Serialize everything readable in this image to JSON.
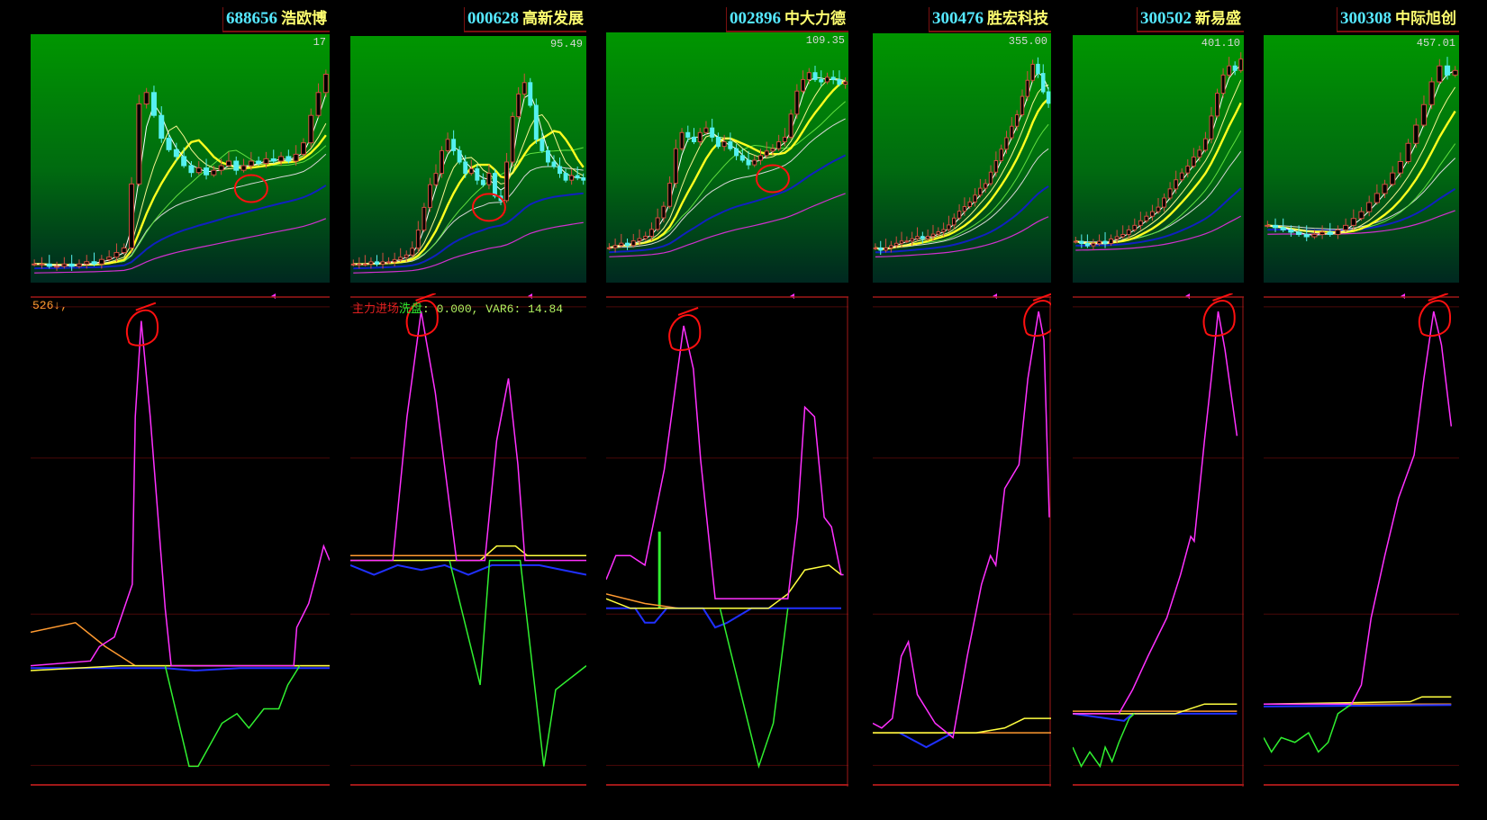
{
  "colors": {
    "up": "#d05040",
    "down": "#55f0f0",
    "ma5": "#ffffff",
    "ma10": "#f5f590",
    "ma20": "#ffff20",
    "ma30": "#60e040",
    "ma60": "#d8d8d8",
    "ma120": "#1020c0",
    "ma250": "#d030d0",
    "magenta": "#ff30ff",
    "yellow": "#ffff40",
    "orange": "#ff9a30",
    "blue": "#2030ff",
    "green": "#30f030",
    "annotation": "#ff1010"
  },
  "chart_data": [
    {
      "type": "line",
      "code": "688656",
      "name": "浩欧博",
      "high_label": "17",
      "closes": [
        5,
        5,
        4,
        4,
        5,
        4,
        5,
        6,
        5,
        7,
        8,
        10,
        12,
        40,
        75,
        80,
        70,
        60,
        55,
        52,
        48,
        45,
        47,
        44,
        46,
        48,
        50,
        46,
        48,
        50,
        49,
        51,
        50,
        52,
        50,
        53,
        58,
        70,
        80,
        88
      ],
      "price_circle": {
        "bar": 29,
        "value": 38
      },
      "indicator": {
        "magenta": [
          [
            0,
            23
          ],
          [
            20,
            24
          ],
          [
            23,
            27
          ],
          [
            28,
            29
          ],
          [
            34,
            40
          ],
          [
            35,
            75
          ],
          [
            37,
            95
          ],
          [
            40,
            75
          ],
          [
            45,
            35
          ],
          [
            47,
            23
          ],
          [
            55,
            23
          ],
          [
            88,
            23
          ],
          [
            89,
            31
          ],
          [
            93,
            36
          ],
          [
            96,
            43
          ],
          [
            98,
            48
          ],
          [
            100,
            45
          ]
        ],
        "orange": [
          [
            0,
            30
          ],
          [
            15,
            32
          ],
          [
            25,
            27
          ],
          [
            35,
            23
          ],
          [
            100,
            23
          ]
        ],
        "yellow": [
          [
            0,
            22
          ],
          [
            30,
            23
          ],
          [
            100,
            23
          ]
        ],
        "blue": [
          [
            0,
            22.5
          ],
          [
            45,
            22.5
          ],
          [
            55,
            22
          ],
          [
            70,
            22.5
          ],
          [
            100,
            22.5
          ]
        ],
        "green": [
          [
            45,
            23
          ],
          [
            53,
            2
          ],
          [
            56,
            2
          ],
          [
            64,
            11
          ],
          [
            69,
            13
          ],
          [
            73,
            10
          ],
          [
            78,
            14
          ],
          [
            83,
            14
          ],
          [
            86,
            19
          ],
          [
            90,
            23
          ]
        ]
      },
      "legend": {
        "text1": "526↓,"
      }
    },
    {
      "type": "line",
      "code": "000628",
      "name": "高新发展",
      "high_label": "95.49",
      "closes": [
        5,
        5,
        5,
        6,
        5,
        6,
        6,
        7,
        8,
        9,
        12,
        20,
        30,
        40,
        45,
        55,
        60,
        55,
        50,
        45,
        47,
        42,
        40,
        45,
        35,
        33,
        50,
        70,
        80,
        85,
        75,
        60,
        55,
        50,
        48,
        45,
        42,
        44,
        43,
        42
      ],
      "price_circle": {
        "bar": 23,
        "value": 30
      },
      "indicator": {
        "magenta": [
          [
            0,
            45
          ],
          [
            18,
            45
          ],
          [
            24,
            75
          ],
          [
            30,
            97
          ],
          [
            36,
            80
          ],
          [
            45,
            45
          ],
          [
            57,
            45
          ],
          [
            62,
            70
          ],
          [
            67,
            83
          ],
          [
            71,
            65
          ],
          [
            74,
            45
          ],
          [
            100,
            45
          ]
        ],
        "yellow": [
          [
            0,
            45
          ],
          [
            55,
            45
          ],
          [
            62,
            48
          ],
          [
            70,
            48
          ],
          [
            75,
            46
          ],
          [
            100,
            46
          ]
        ],
        "orange": [
          [
            0,
            46
          ],
          [
            100,
            46
          ]
        ],
        "blue": [
          [
            0,
            44
          ],
          [
            10,
            42
          ],
          [
            20,
            44
          ],
          [
            30,
            43
          ],
          [
            40,
            44
          ],
          [
            50,
            42
          ],
          [
            60,
            44
          ],
          [
            80,
            44
          ],
          [
            90,
            43
          ],
          [
            100,
            42
          ]
        ],
        "green": [
          [
            42,
            45
          ],
          [
            55,
            19
          ],
          [
            59,
            45
          ],
          [
            72,
            45
          ],
          [
            82,
            2
          ],
          [
            87,
            18
          ],
          [
            100,
            23
          ]
        ]
      },
      "legend": {
        "text1": "主力进场",
        "text2": "洗盘",
        "text3": ": 0.000, VAR6: 14.84"
      }
    },
    {
      "type": "line",
      "code": "002896",
      "name": "中大力德",
      "high_label": "109.35",
      "closes": [
        12,
        13,
        14,
        13,
        15,
        16,
        17,
        20,
        25,
        30,
        40,
        55,
        62,
        60,
        58,
        62,
        64,
        60,
        56,
        58,
        55,
        52,
        50,
        48,
        50,
        52,
        54,
        55,
        58,
        60,
        70,
        80,
        85,
        88,
        85,
        84,
        86,
        85,
        83,
        84
      ],
      "price_circle": {
        "bar": 27,
        "value": 42
      },
      "indicator": {
        "magenta": [
          [
            0,
            41
          ],
          [
            4,
            46
          ],
          [
            10,
            46
          ],
          [
            16,
            44
          ],
          [
            24,
            64
          ],
          [
            28,
            79
          ],
          [
            32,
            94
          ],
          [
            36,
            85
          ],
          [
            39,
            66
          ],
          [
            45,
            37
          ],
          [
            75,
            37
          ],
          [
            79,
            54
          ],
          [
            82,
            77
          ],
          [
            86,
            75
          ],
          [
            90,
            54
          ],
          [
            93,
            52
          ],
          [
            97,
            42
          ],
          [
            98,
            42
          ]
        ],
        "yellow": [
          [
            0,
            37
          ],
          [
            10,
            35
          ],
          [
            67,
            35
          ],
          [
            75,
            38
          ],
          [
            82,
            43
          ],
          [
            92,
            44
          ],
          [
            97,
            42
          ]
        ],
        "orange": [
          [
            0,
            38
          ],
          [
            16,
            36
          ],
          [
            30,
            35
          ],
          [
            97,
            35
          ]
        ],
        "blue": [
          [
            0,
            35
          ],
          [
            12,
            35
          ],
          [
            16,
            32
          ],
          [
            20,
            32
          ],
          [
            25,
            35
          ],
          [
            40,
            35
          ],
          [
            45,
            31
          ],
          [
            50,
            32
          ],
          [
            60,
            35
          ],
          [
            97,
            35
          ]
        ],
        "green": [
          [
            47,
            35
          ],
          [
            63,
            2
          ],
          [
            69,
            11
          ],
          [
            75,
            35
          ]
        ]
      },
      "green_bar": {
        "bar": 22,
        "from": 35,
        "to": 51
      }
    },
    {
      "type": "line",
      "code": "300476",
      "name": "胜宏科技",
      "high_label": "355.00",
      "closes": [
        12,
        11,
        12,
        13,
        14,
        15,
        15,
        16,
        17,
        16,
        17,
        18,
        19,
        20,
        22,
        25,
        28,
        30,
        32,
        35,
        38,
        40,
        45,
        50,
        55,
        60,
        65,
        70,
        78,
        85,
        92,
        88,
        80,
        75
      ],
      "indicator": {
        "magenta": [
          [
            0,
            11
          ],
          [
            5,
            10
          ],
          [
            11,
            12
          ],
          [
            16,
            25
          ],
          [
            20,
            28
          ],
          [
            25,
            17
          ],
          [
            35,
            11
          ],
          [
            45,
            8
          ],
          [
            53,
            25
          ],
          [
            61,
            40
          ],
          [
            66,
            46
          ],
          [
            69,
            44
          ],
          [
            74,
            60
          ],
          [
            82,
            65
          ],
          [
            87,
            83
          ],
          [
            93,
            97
          ],
          [
            96,
            91
          ],
          [
            99,
            54
          ]
        ],
        "yellow": [
          [
            0,
            9
          ],
          [
            58,
            9
          ],
          [
            74,
            10
          ],
          [
            85,
            12
          ],
          [
            100,
            12
          ]
        ],
        "orange": [
          [
            0,
            9
          ],
          [
            100,
            9
          ]
        ],
        "blue": [
          [
            15,
            9
          ],
          [
            25,
            7
          ],
          [
            30,
            6
          ],
          [
            40,
            8
          ],
          [
            45,
            9
          ]
        ]
      }
    },
    {
      "type": "line",
      "code": "300502",
      "name": "新易盛",
      "high_label": "401.10",
      "closes": [
        15,
        14,
        13,
        14,
        15,
        14,
        16,
        17,
        18,
        20,
        22,
        24,
        26,
        28,
        30,
        34,
        38,
        42,
        45,
        48,
        52,
        55,
        60,
        70,
        80,
        88,
        92,
        90,
        95
      ],
      "indicator": {
        "magenta": [
          [
            0,
            13
          ],
          [
            27,
            13
          ],
          [
            35,
            18
          ],
          [
            44,
            25
          ],
          [
            55,
            33
          ],
          [
            63,
            42
          ],
          [
            69,
            50
          ],
          [
            71,
            49
          ],
          [
            77,
            70
          ],
          [
            81,
            83
          ],
          [
            85,
            97
          ],
          [
            89,
            89
          ],
          [
            96,
            71
          ]
        ],
        "yellow": [
          [
            0,
            13
          ],
          [
            60,
            13
          ],
          [
            77,
            15
          ],
          [
            96,
            15
          ]
        ],
        "orange": [
          [
            0,
            13.5
          ],
          [
            96,
            13.5
          ]
        ],
        "blue": [
          [
            0,
            13
          ],
          [
            20,
            12
          ],
          [
            30,
            11.5
          ],
          [
            35,
            13
          ],
          [
            96,
            13
          ]
        ],
        "green": [
          [
            0,
            6
          ],
          [
            5,
            2
          ],
          [
            10,
            5
          ],
          [
            16,
            2
          ],
          [
            19,
            6
          ],
          [
            23,
            3
          ],
          [
            27,
            7
          ],
          [
            33,
            12
          ],
          [
            36,
            13
          ]
        ]
      }
    },
    {
      "type": "line",
      "code": "300308",
      "name": "中际旭创",
      "high_label": "457.01",
      "closes": [
        22,
        21,
        20,
        19,
        18,
        17,
        18,
        19,
        18,
        20,
        22,
        25,
        28,
        32,
        36,
        40,
        45,
        50,
        58,
        66,
        75,
        85,
        92,
        88,
        90
      ],
      "indicator": {
        "magenta": [
          [
            0,
            15
          ],
          [
            45,
            15
          ],
          [
            50,
            19
          ],
          [
            55,
            33
          ],
          [
            62,
            46
          ],
          [
            69,
            58
          ],
          [
            77,
            67
          ],
          [
            82,
            83
          ],
          [
            87,
            97
          ],
          [
            91,
            90
          ],
          [
            96,
            73
          ]
        ],
        "yellow": [
          [
            0,
            15
          ],
          [
            75,
            15.5
          ],
          [
            81,
            16.5
          ],
          [
            96,
            16.5
          ]
        ],
        "orange": [
          [
            0,
            15
          ],
          [
            96,
            15
          ]
        ],
        "blue": [
          [
            0,
            14.5
          ],
          [
            96,
            14.8
          ]
        ],
        "green": [
          [
            0,
            8
          ],
          [
            4,
            5
          ],
          [
            9,
            8
          ],
          [
            16,
            7
          ],
          [
            23,
            9
          ],
          [
            28,
            5
          ],
          [
            33,
            7
          ],
          [
            38,
            13
          ],
          [
            45,
            15
          ]
        ]
      }
    }
  ]
}
